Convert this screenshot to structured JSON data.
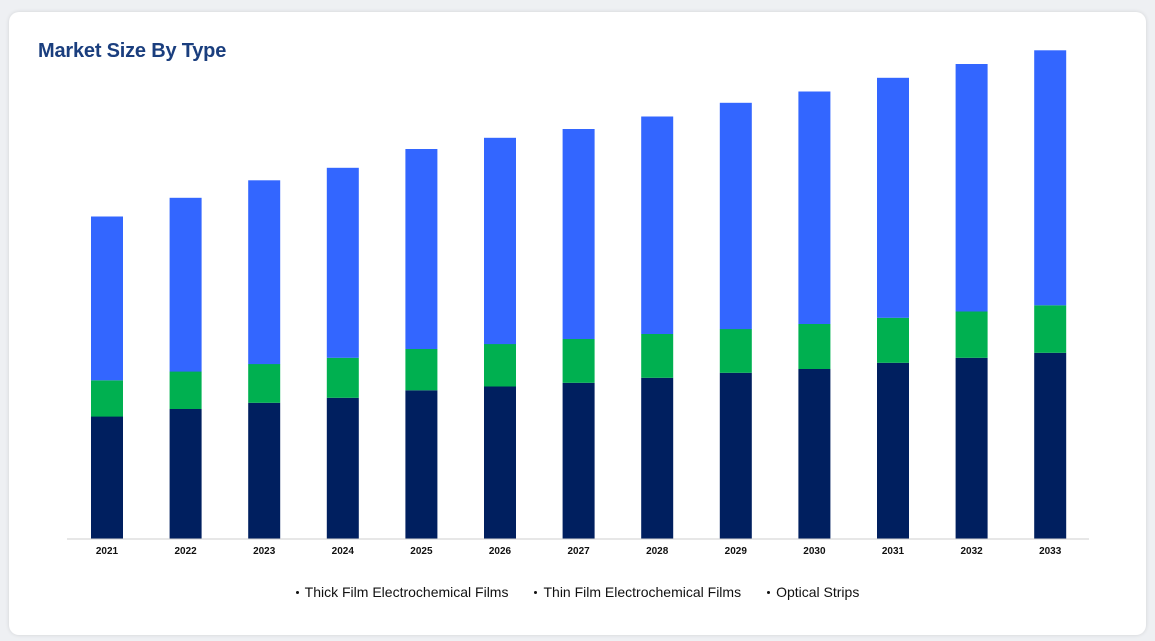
{
  "card": {
    "title": "Market Size By Type"
  },
  "chart_data": {
    "type": "bar",
    "stacked": true,
    "categories": [
      "2021",
      "2022",
      "2023",
      "2024",
      "2025",
      "2026",
      "2027",
      "2028",
      "2029",
      "2030",
      "2031",
      "2032",
      "2033"
    ],
    "series": [
      {
        "name": "Thick Film Electrochemical Films",
        "color": "#001f5f",
        "values": [
          98,
          104,
          109,
          113,
          119,
          122,
          125,
          129,
          133,
          136,
          141,
          145,
          149
        ]
      },
      {
        "name": "Thin Film Electrochemical Films",
        "color": "#00b050",
        "values": [
          29,
          30,
          31,
          32,
          33,
          34,
          35,
          35,
          35,
          36,
          36,
          37,
          38
        ]
      },
      {
        "name": "Optical Strips",
        "color": "#3366ff",
        "values": [
          131,
          139,
          147,
          152,
          160,
          165,
          168,
          174,
          181,
          186,
          192,
          198,
          204
        ]
      }
    ],
    "ylim": [
      0,
      400
    ],
    "xlabel": "",
    "ylabel": "",
    "grid": false,
    "legend_position": "bottom-center"
  }
}
